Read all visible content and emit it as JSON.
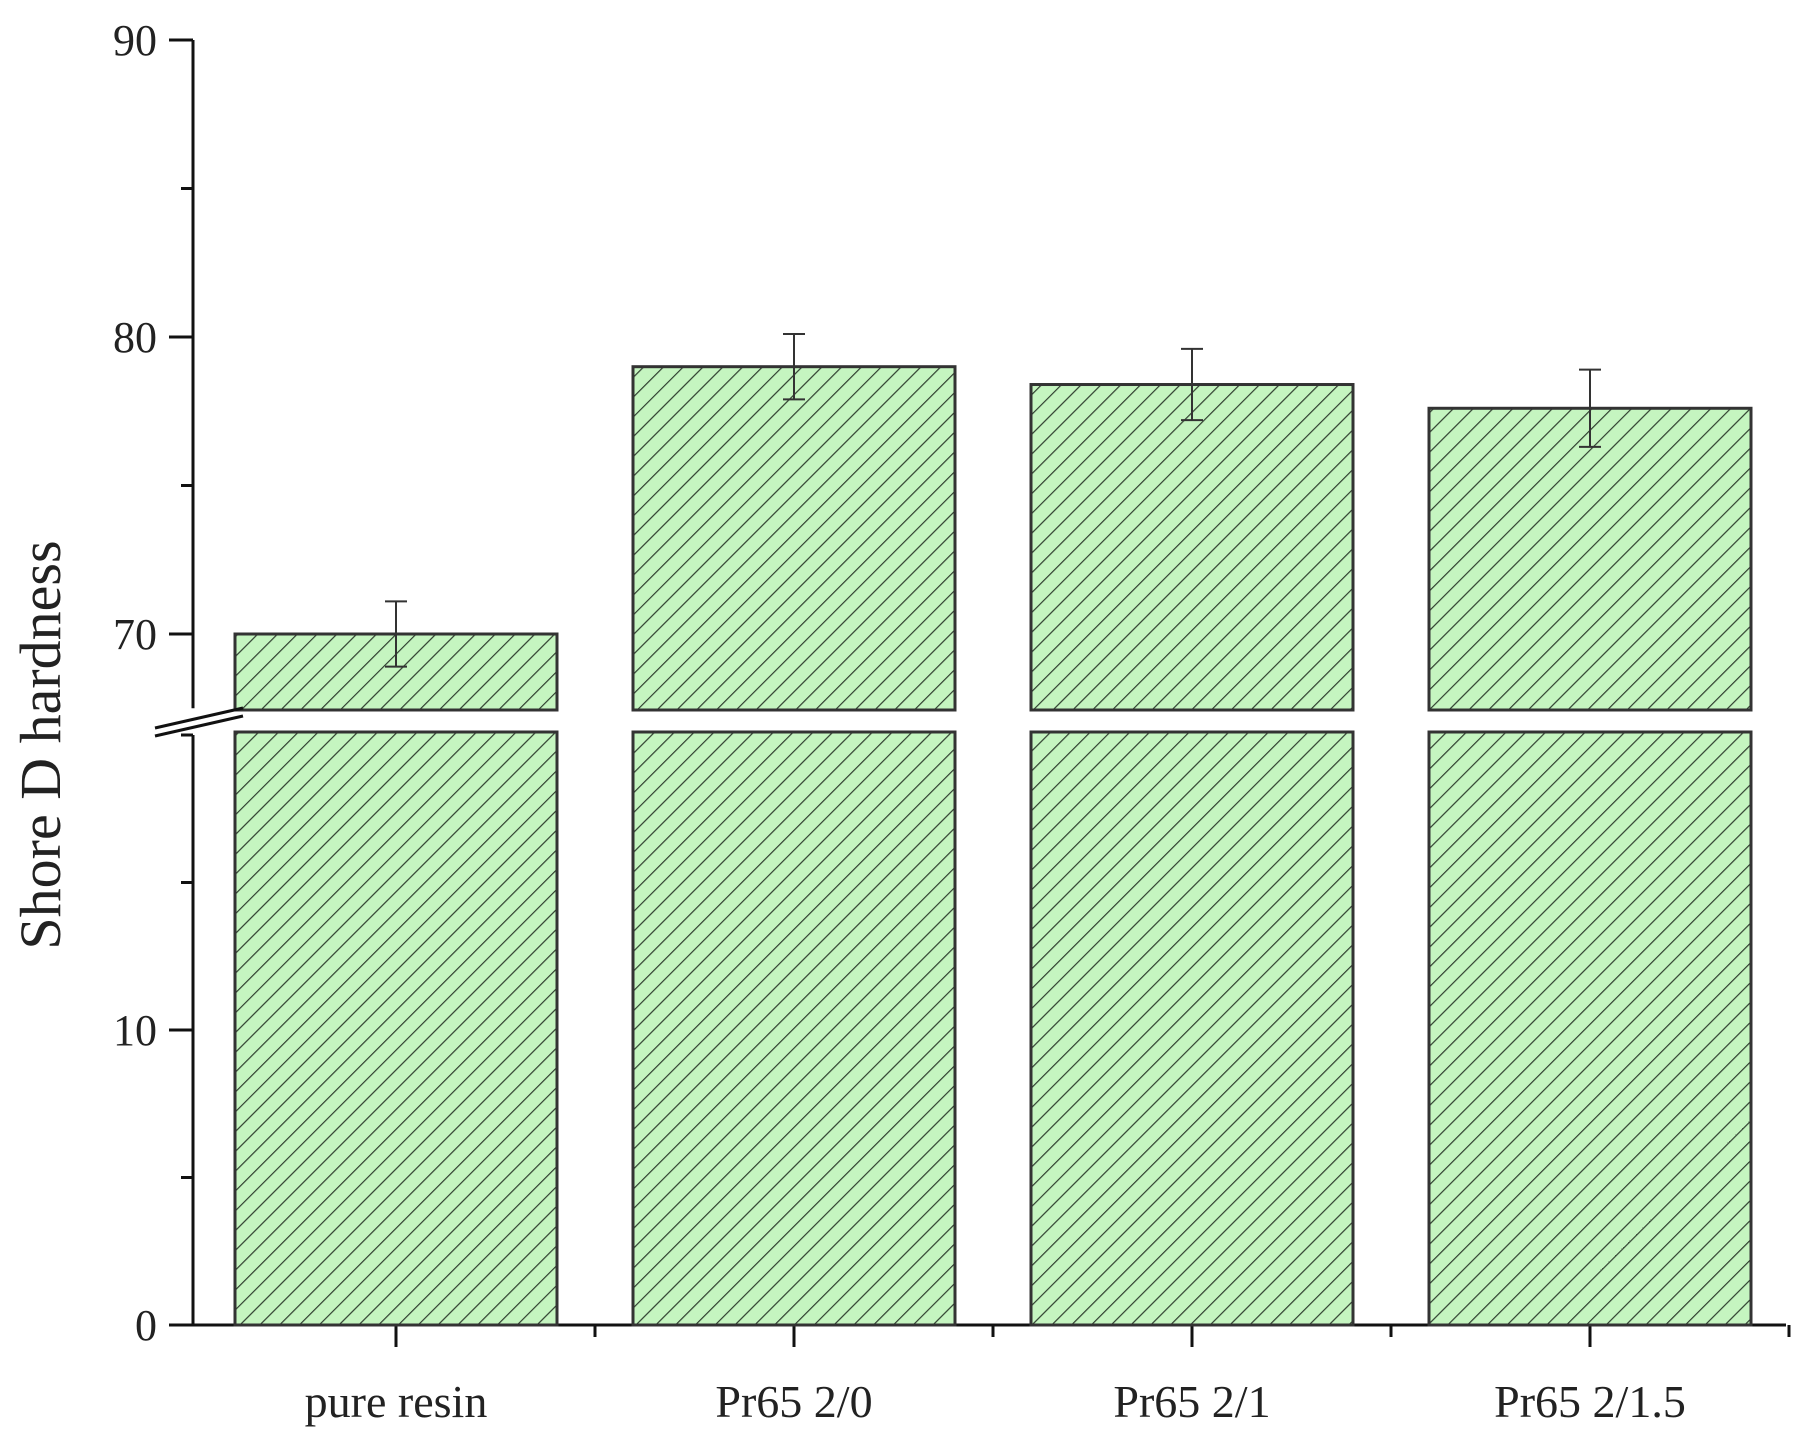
{
  "chart_data": {
    "type": "bar",
    "title": "",
    "xlabel": "",
    "ylabel": "Shore D hardness",
    "categories": [
      "pure resin",
      "Pr65 2/0",
      "Pr65 2/1",
      "Pr65 2/1.5"
    ],
    "values": [
      70.0,
      79.0,
      78.4,
      77.6
    ],
    "errors": [
      1.1,
      1.1,
      1.2,
      1.3
    ],
    "axis_break": true,
    "lower_segment": {
      "ylim": [
        0,
        20
      ],
      "major_ticks": [
        0,
        10
      ]
    },
    "upper_segment": {
      "ylim": [
        67.5,
        90
      ],
      "major_ticks": [
        70,
        80,
        90
      ]
    },
    "bar_fill": "#c5f5c0",
    "hatch": "diagonal",
    "grid": false,
    "legend": "none"
  }
}
